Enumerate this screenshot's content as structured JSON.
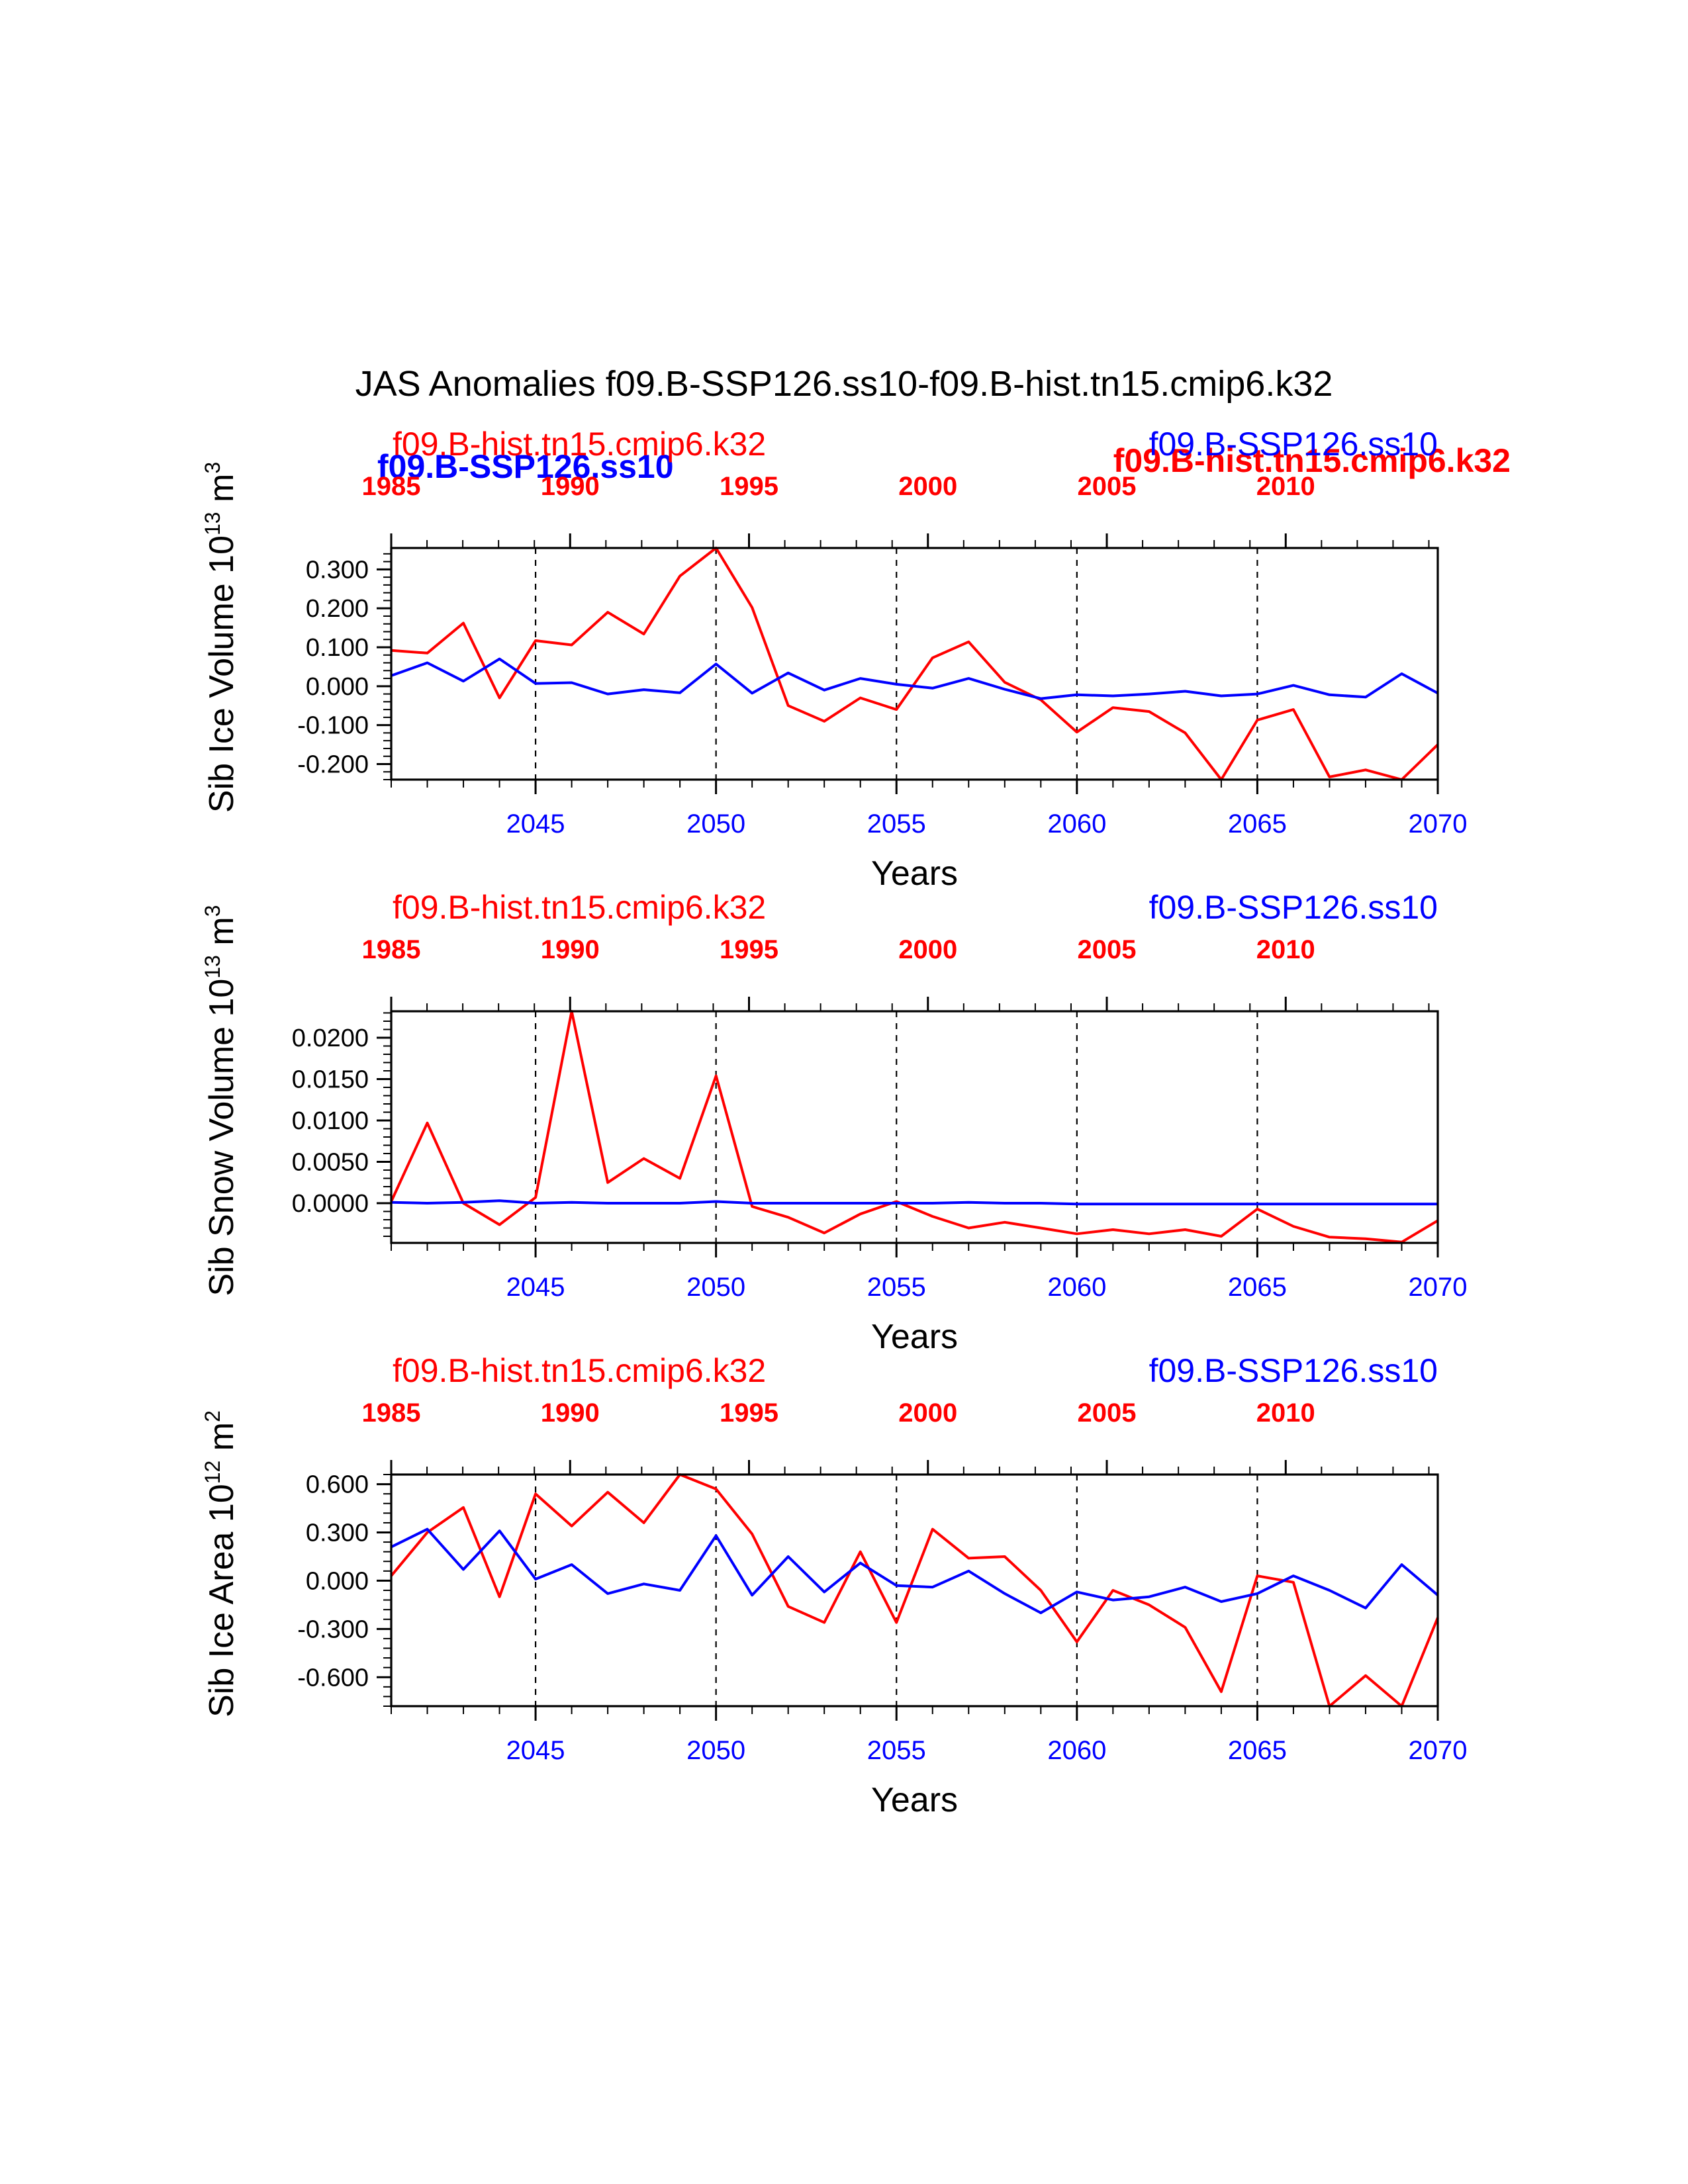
{
  "title": "JAS Anomalies f09.B-SSP126.ss10-f09.B-hist.tn15.cmip6.k32",
  "colors": {
    "hist": "#ff0000",
    "ssp": "#0000ff",
    "axis": "#000000"
  },
  "extra_labels": {
    "hist_bold": "f09.B-hist.tn15.cmip6.k32",
    "ssp_bold": "f09.B-SSP126.ss10"
  },
  "chart_data": [
    {
      "type": "line",
      "ylabel": "Sib Ice Volume 10",
      "ylabel_exp": "13",
      "ylabel_unit": "m",
      "ylabel_unit_exp": "3",
      "xlabel": "Years",
      "legend_left": "f09.B-hist.tn15.cmip6.k32",
      "legend_right": "f09.B-SSP126.ss10",
      "ylim": [
        -0.24,
        0.355
      ],
      "ytick_values": [
        0.3,
        0.2,
        0.1,
        0.0,
        -0.1,
        -0.2
      ],
      "ytick_labels": [
        "0.300",
        "0.200",
        "0.100",
        "0.000",
        "-0.100",
        "-0.200"
      ],
      "x": [
        2041,
        2042,
        2043,
        2044,
        2045,
        2046,
        2047,
        2048,
        2049,
        2050,
        2051,
        2052,
        2053,
        2054,
        2055,
        2056,
        2057,
        2058,
        2059,
        2060,
        2061,
        2062,
        2063,
        2064,
        2065,
        2066,
        2067,
        2068,
        2069,
        2070
      ],
      "series": [
        {
          "name": "f09.B-hist.tn15.cmip6.k32",
          "color": "#ff0000",
          "values": [
            0.092,
            0.085,
            0.162,
            -0.03,
            0.117,
            0.106,
            0.19,
            0.134,
            0.283,
            0.355,
            0.202,
            -0.05,
            -0.09,
            -0.03,
            -0.06,
            0.073,
            0.114,
            0.01,
            -0.035,
            -0.118,
            -0.055,
            -0.065,
            -0.12,
            -0.24,
            -0.087,
            -0.06,
            -0.233,
            -0.215,
            -0.24,
            -0.15
          ]
        },
        {
          "name": "f09.B-SSP126.ss10",
          "color": "#0000ff",
          "values": [
            0.027,
            0.06,
            0.013,
            0.07,
            0.007,
            0.009,
            -0.02,
            -0.009,
            -0.017,
            0.057,
            -0.018,
            0.034,
            -0.01,
            0.02,
            0.005,
            -0.005,
            0.02,
            -0.008,
            -0.032,
            -0.022,
            -0.025,
            -0.02,
            -0.013,
            -0.025,
            -0.02,
            0.002,
            -0.022,
            -0.028,
            0.032,
            -0.018
          ]
        }
      ]
    },
    {
      "type": "line",
      "ylabel": "Sib Snow Volume 10",
      "ylabel_exp": "13",
      "ylabel_unit": "m",
      "ylabel_unit_exp": "3",
      "xlabel": "Years",
      "legend_left": "f09.B-hist.tn15.cmip6.k32",
      "legend_right": "f09.B-SSP126.ss10",
      "ylim": [
        -0.0048,
        0.0232
      ],
      "ytick_values": [
        0.02,
        0.015,
        0.01,
        0.005,
        0.0
      ],
      "ytick_labels": [
        "0.0200",
        "0.0150",
        "0.0100",
        "0.0050",
        "0.0000"
      ],
      "x": [
        2041,
        2042,
        2043,
        2044,
        2045,
        2046,
        2047,
        2048,
        2049,
        2050,
        2051,
        2052,
        2053,
        2054,
        2055,
        2056,
        2057,
        2058,
        2059,
        2060,
        2061,
        2062,
        2063,
        2064,
        2065,
        2066,
        2067,
        2068,
        2069,
        2070
      ],
      "series": [
        {
          "name": "f09.B-hist.tn15.cmip6.k32",
          "color": "#ff0000",
          "values": [
            0.0002,
            0.0097,
            0.0,
            -0.0026,
            0.0007,
            0.0232,
            0.0025,
            0.0054,
            0.003,
            0.0154,
            -0.0004,
            -0.0017,
            -0.0036,
            -0.0013,
            0.0002,
            -0.0016,
            -0.003,
            -0.0023,
            -0.003,
            -0.0037,
            -0.0032,
            -0.0037,
            -0.0032,
            -0.004,
            -0.0007,
            -0.0028,
            -0.0041,
            -0.0043,
            -0.0047,
            -0.0021
          ]
        },
        {
          "name": "f09.B-SSP126.ss10",
          "color": "#0000ff",
          "values": [
            0.0001,
            0.0,
            0.0001,
            0.0003,
            0.0,
            0.0001,
            0.0,
            0.0,
            0.0,
            0.0002,
            0.0,
            0.0,
            0.0,
            0.0,
            0.0,
            0.0,
            0.0001,
            0.0,
            0.0,
            -0.0001,
            -0.0001,
            -0.0001,
            -0.0001,
            -0.0001,
            -0.0001,
            -0.0001,
            -0.0001,
            -0.0001,
            -0.0001,
            -0.0001
          ]
        }
      ]
    },
    {
      "type": "line",
      "ylabel": "Sib Ice Area 10",
      "ylabel_exp": "12",
      "ylabel_unit": "m",
      "ylabel_unit_exp": "2",
      "xlabel": "Years",
      "legend_left": "f09.B-hist.tn15.cmip6.k32",
      "legend_right": "f09.B-SSP126.ss10",
      "ylim": [
        -0.78,
        0.66
      ],
      "ytick_values": [
        0.6,
        0.3,
        0.0,
        -0.3,
        -0.6
      ],
      "ytick_labels": [
        "0.600",
        "0.300",
        "0.000",
        "-0.300",
        "-0.600"
      ],
      "x": [
        2041,
        2042,
        2043,
        2044,
        2045,
        2046,
        2047,
        2048,
        2049,
        2050,
        2051,
        2052,
        2053,
        2054,
        2055,
        2056,
        2057,
        2058,
        2059,
        2060,
        2061,
        2062,
        2063,
        2064,
        2065,
        2066,
        2067,
        2068,
        2069,
        2070
      ],
      "series": [
        {
          "name": "f09.B-hist.tn15.cmip6.k32",
          "color": "#ff0000",
          "values": [
            0.03,
            0.3,
            0.455,
            -0.1,
            0.54,
            0.34,
            0.55,
            0.36,
            0.66,
            0.57,
            0.29,
            -0.16,
            -0.26,
            0.18,
            -0.26,
            0.32,
            0.14,
            0.15,
            -0.06,
            -0.38,
            -0.06,
            -0.15,
            -0.29,
            -0.69,
            0.03,
            -0.01,
            -0.78,
            -0.59,
            -0.78,
            -0.23
          ]
        },
        {
          "name": "f09.B-SSP126.ss10",
          "color": "#0000ff",
          "values": [
            0.21,
            0.32,
            0.07,
            0.31,
            0.01,
            0.1,
            -0.08,
            -0.02,
            -0.06,
            0.28,
            -0.09,
            0.15,
            -0.07,
            0.11,
            -0.03,
            -0.04,
            0.06,
            -0.08,
            -0.2,
            -0.07,
            -0.12,
            -0.1,
            -0.04,
            -0.13,
            -0.08,
            0.03,
            -0.06,
            -0.17,
            0.1,
            -0.09
          ]
        }
      ]
    }
  ],
  "bottom_axis": {
    "ticks": [
      2045,
      2050,
      2055,
      2060,
      2065,
      2070
    ],
    "labels": [
      "2045",
      "2050",
      "2055",
      "2060",
      "2065",
      "2070"
    ]
  },
  "top_axis": {
    "ticks": [
      1985,
      1990,
      1995,
      2000,
      2005,
      2010
    ],
    "labels": [
      "1985",
      "1990",
      "1995",
      "2000",
      "2005",
      "2010"
    ]
  }
}
